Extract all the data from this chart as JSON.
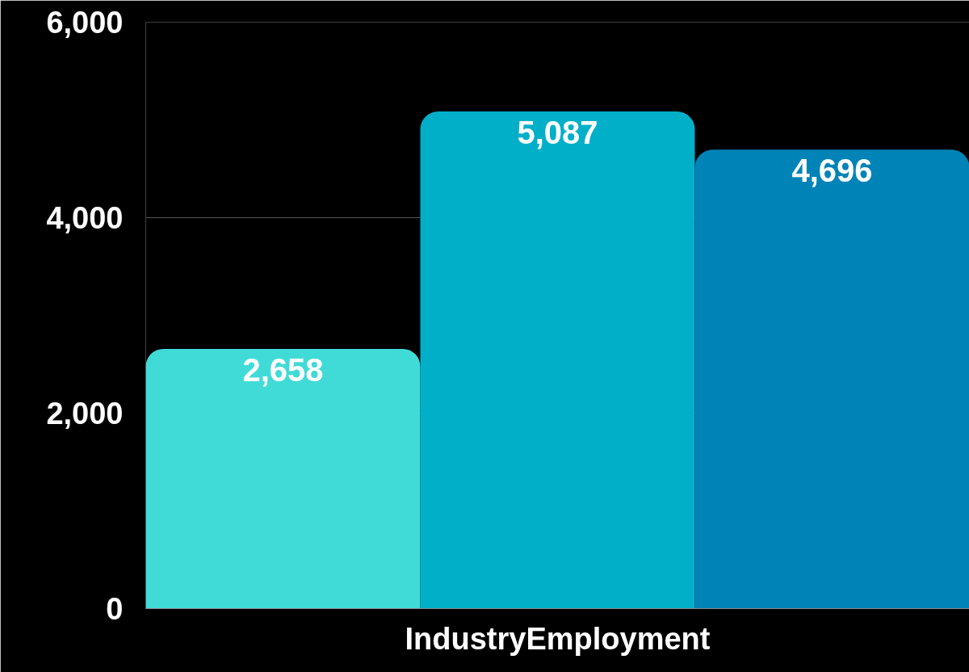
{
  "chart_data": {
    "type": "bar",
    "categories": [
      "IndustryEmployment"
    ],
    "series": [
      {
        "color": "#40dbd7",
        "values": [
          2658
        ],
        "value_labels": [
          "2,658"
        ]
      },
      {
        "color": "#02afc9",
        "values": [
          5087
        ],
        "value_labels": [
          "5,087"
        ]
      },
      {
        "color": "#0083b6",
        "values": [
          4696
        ],
        "value_labels": [
          "4,696"
        ]
      }
    ],
    "ylim": [
      0,
      6000
    ],
    "yticks": [
      {
        "value": 0,
        "label": "0"
      },
      {
        "value": 2000,
        "label": "2,000"
      },
      {
        "value": 4000,
        "label": "4,000"
      },
      {
        "value": 6000,
        "label": "6,000"
      }
    ],
    "grid": "y"
  }
}
